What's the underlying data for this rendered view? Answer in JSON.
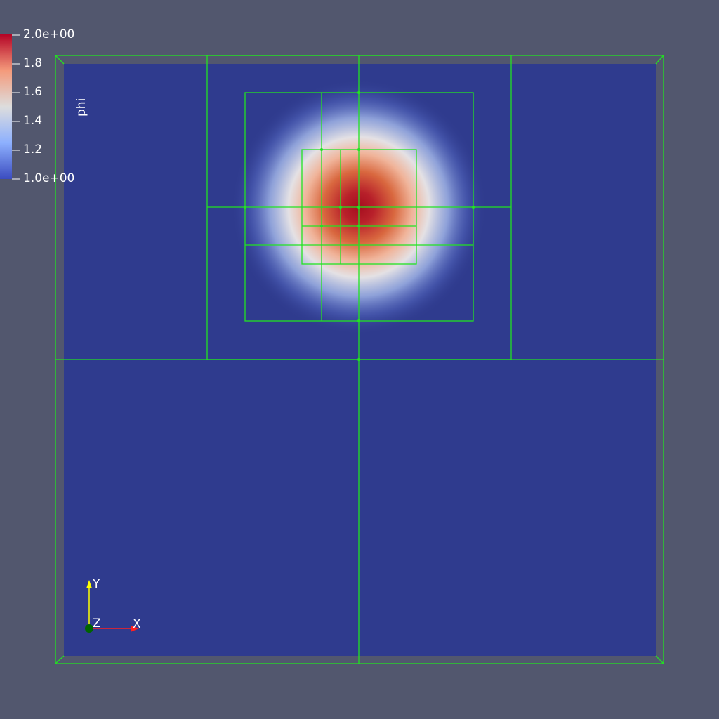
{
  "colorbar": {
    "title": "phi",
    "ticks": [
      "2.0e+00",
      "1.8",
      "1.6",
      "1.4",
      "1.2",
      "1.0e+00"
    ],
    "range": [
      1.0,
      2.0
    ],
    "colormap": "cool-to-warm",
    "colors": [
      "#3b4cc0",
      "#dddddd",
      "#b40426"
    ]
  },
  "orientation_axes": {
    "x_label": "X",
    "y_label": "Y",
    "z_label": "Z",
    "colors": {
      "x": "#ff2020",
      "y": "#ffff00",
      "z": "#006400"
    }
  },
  "scene": {
    "background": "#52576e",
    "field_min_color": "#2f3b8e",
    "grid_color": "#22e322",
    "field_peak_value": 2.0,
    "field_base_value": 1.0
  }
}
